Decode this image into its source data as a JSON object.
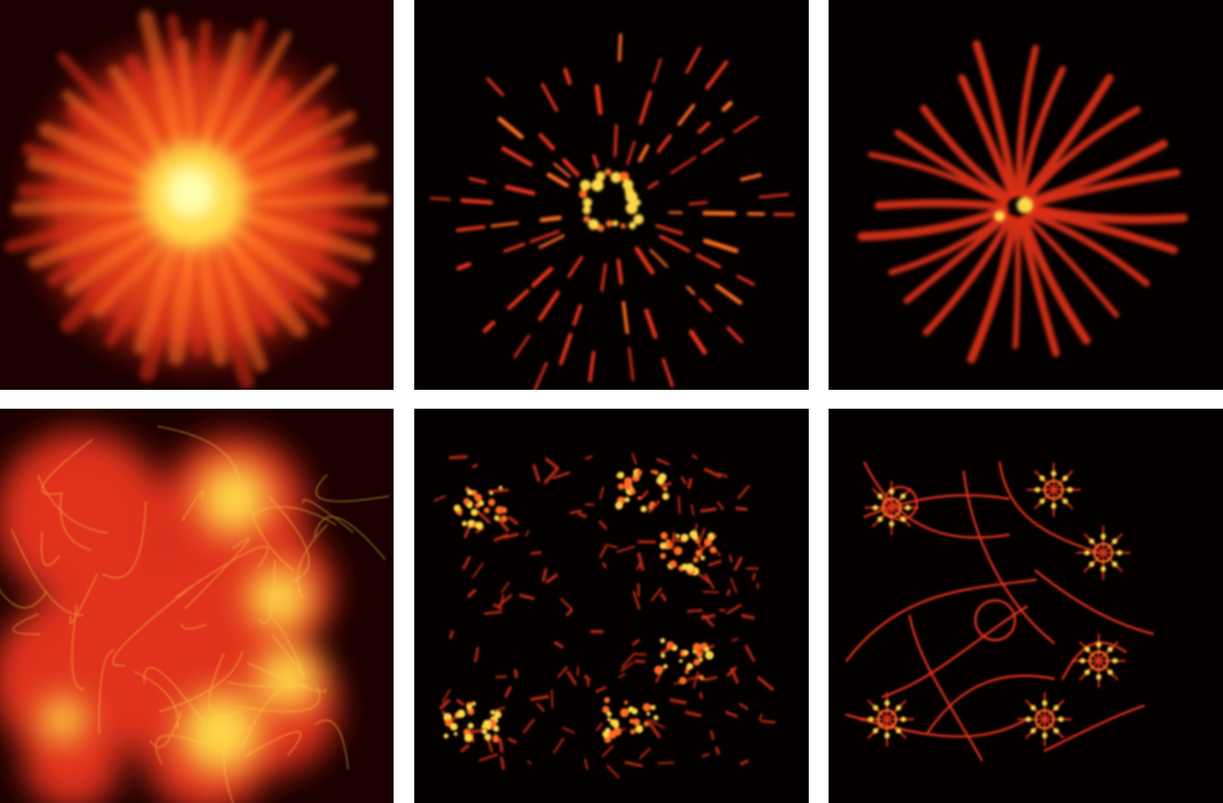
{
  "figure": {
    "layout": {
      "rows": 2,
      "columns": 3
    },
    "colormap": [
      "#000000",
      "#3a0000",
      "#8b0a00",
      "#e0301a",
      "#ff6a20",
      "#ffd84a",
      "#ffffb0"
    ],
    "background_color": "#ffffff",
    "panels": [
      {
        "row": 1,
        "col": 1,
        "style": "diffuse",
        "subject": "starburst-blurred"
      },
      {
        "row": 1,
        "col": 2,
        "style": "fragmented",
        "subject": "starburst-sparse"
      },
      {
        "row": 1,
        "col": 3,
        "style": "sharp",
        "subject": "starburst-filaments"
      },
      {
        "row": 2,
        "col": 1,
        "style": "diffuse",
        "subject": "network-blurred"
      },
      {
        "row": 2,
        "col": 2,
        "style": "fragmented",
        "subject": "network-sparse"
      },
      {
        "row": 2,
        "col": 3,
        "style": "sharp",
        "subject": "network-filaments"
      }
    ]
  }
}
